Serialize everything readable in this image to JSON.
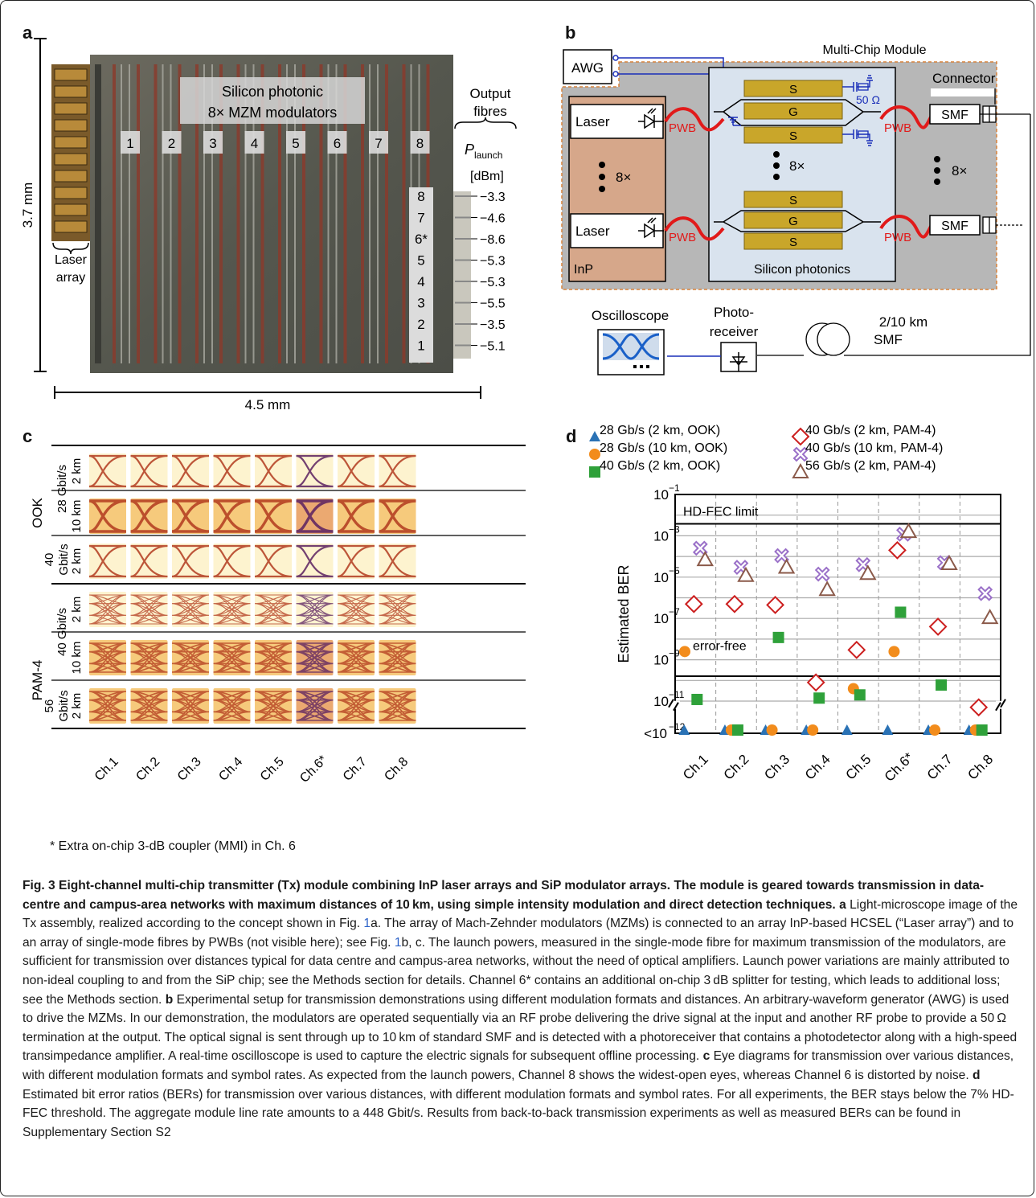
{
  "panel_a": {
    "label": "a",
    "title_line1": "Silicon photonic",
    "title_line2": "8× MZM modulators",
    "modulator_numbers": [
      "1",
      "2",
      "3",
      "4",
      "5",
      "6",
      "7",
      "8"
    ],
    "height_label": "3.7 mm",
    "width_label": "4.5 mm",
    "laser_label_1": "Laser",
    "laser_label_2": "array",
    "output_label_1": "Output",
    "output_label_2": "fibres",
    "plaunch": "P",
    "plaunch_sub": "launch",
    "unit": "[dBm]",
    "channels": [
      {
        "ch": "8",
        "power": "−3.3"
      },
      {
        "ch": "7",
        "power": "−4.6"
      },
      {
        "ch": "6*",
        "power": "−8.6"
      },
      {
        "ch": "5",
        "power": "−5.3"
      },
      {
        "ch": "4",
        "power": "−5.3"
      },
      {
        "ch": "3",
        "power": "−5.5"
      },
      {
        "ch": "2",
        "power": "−3.5"
      },
      {
        "ch": "1",
        "power": "−5.1"
      }
    ]
  },
  "panel_b": {
    "label": "b",
    "mcm": "Multi-Chip Module",
    "awg": "AWG",
    "connector": "Connector",
    "laser": "Laser",
    "pwb": "PWB",
    "s": "S",
    "g": "G",
    "ohm": "50 Ω",
    "smf": "SMF",
    "times8": "8×",
    "inp": "InP",
    "sip": "Silicon photonics",
    "oscilloscope": "Oscilloscope",
    "photoreceiver_1": "Photo-",
    "photoreceiver_2": "receiver",
    "fiber_1": "2/10 km",
    "fiber_2": "SMF"
  },
  "panel_c": {
    "label": "c",
    "rows": [
      {
        "dist": "2 km"
      },
      {
        "dist": "10 km"
      },
      {
        "dist": "2 km"
      },
      {
        "dist": "2 km"
      },
      {
        "dist": "10 km"
      },
      {
        "dist": "2 km"
      }
    ],
    "rate_28": "28 Gbit/s",
    "rate_40a": "40",
    "rate_40b": "Gbit/s",
    "rate_40p": "40 Gbit/s",
    "rate_56a": "56",
    "rate_56b": "Gbit/s",
    "ook": "OOK",
    "pam4": "PAM-4",
    "channels": [
      "Ch.1",
      "Ch.2",
      "Ch.3",
      "Ch.4",
      "Ch.5",
      "Ch.6*",
      "Ch.7",
      "Ch.8"
    ]
  },
  "footnote": "* Extra on-chip 3-dB coupler (MMI) in Ch. 6",
  "chart_data": {
    "type": "scatter",
    "ylabel": "Estimated BER",
    "yscale": "log",
    "ylim": [
      1e-12,
      0.1
    ],
    "yticks": [
      "10^-1",
      "10^-3",
      "10^-5",
      "10^-7",
      "10^-9",
      "10^-11",
      "<10^-12"
    ],
    "categories": [
      "Ch.1",
      "Ch.2",
      "Ch.3",
      "Ch.4",
      "Ch.5",
      "Ch.6*",
      "Ch.7",
      "Ch.8"
    ],
    "grid": true,
    "legend_position": "top",
    "annotations": [
      "HD-FEC  limit",
      "error-free"
    ],
    "hd_fec_limit": 0.0038,
    "error_free_level": 1e-12,
    "series": [
      {
        "name": "28 Gb/s (2 km,   OOK)",
        "marker": "triangle-filled",
        "color": "#2a72b5",
        "values": [
          1e-12,
          1e-12,
          1e-12,
          1e-12,
          1e-12,
          1e-12,
          1e-12,
          1e-12
        ]
      },
      {
        "name": "28 Gb/s (10 km, OOK)",
        "marker": "circle-filled",
        "color": "#f28c1c",
        "values": [
          3e-09,
          1e-12,
          1e-12,
          1e-12,
          4e-11,
          2.5e-09,
          1e-12,
          1e-12
        ]
      },
      {
        "name": "40 Gb/s (2 km,   OOK)",
        "marker": "square-filled",
        "color": "#2fa13a",
        "values": [
          1.2e-11,
          1e-12,
          1.2e-08,
          1.4e-11,
          2e-11,
          2e-07,
          6e-11,
          1e-12
        ]
      },
      {
        "name": "40 Gb/s (2 km,   PAM-4)",
        "marker": "diamond-open",
        "color": "#cc1f1f",
        "values": [
          5e-07,
          5e-07,
          4.5e-07,
          8e-11,
          3e-09,
          0.0002,
          4e-08,
          5e-12
        ]
      },
      {
        "name": "40 Gb/s (10 km, PAM-4)",
        "marker": "x-open",
        "color": "#9a70c8",
        "values": [
          0.00025,
          3e-05,
          0.00011,
          1.4e-05,
          4e-05,
          0.0012,
          5e-05,
          1.6e-06
        ]
      },
      {
        "name": "56 Gb/s (2 km,   PAM-4)",
        "marker": "triangle-open",
        "color": "#8b5a4a",
        "values": [
          7e-05,
          1.2e-05,
          3e-05,
          2.5e-06,
          1.5e-05,
          0.0016,
          4.5e-05,
          1.1e-07
        ]
      }
    ]
  },
  "caption": {
    "title": "Fig. 3 Eight-channel multi-chip transmitter (Tx) module combining InP laser arrays and SiP modulator arrays. The module is geared towards transmission in data-centre and campus-area networks with maximum distances of 10 km, using simple intensity modulation and direct detection techniques.",
    "a_label": "a",
    "a1": " Light-microscope image of the Tx assembly, realized according to the concept shown in Fig. ",
    "ref1": "1",
    "a2": "a. The array of Mach-Zehnder modulators (MZMs) is connected to an array InP-based HCSEL (“Laser array”) and to an array of single-mode fibres by PWBs (not visible here); see Fig. ",
    "ref2": "1",
    "a3": "b, c. The launch powers, measured in the single-mode fibre for maximum transmission of the modulators, are sufficient for transmission over distances typical for data centre and campus-area networks, without the need of optical amplifiers. Launch power variations are mainly attributed to non-ideal coupling to and from the SiP chip; see the Methods section for details. Channel 6* contains an additional on-chip 3 dB splitter for testing, which leads to additional loss; see the Methods section. ",
    "b_label": "b",
    "b": " Experimental setup for transmission demonstrations using different modulation formats and distances. An arbitrary-waveform generator (AWG) is used to drive the MZMs. In our demonstration, the modulators are operated sequentially via an RF probe delivering the drive signal at the input and another RF probe to provide a 50 Ω termination at the output. The optical signal is sent through up to 10 km of standard SMF and is detected with a photoreceiver that contains a photodetector along with a high-speed transimpedance amplifier. A real-time oscilloscope is used to capture the electric signals for subsequent offline processing. ",
    "c_label": "c",
    "c": " Eye diagrams for transmission over various distances, with different modulation formats and symbol rates. As expected from the launch powers, Channel 8 shows the widest-open eyes, whereas Channel 6 is distorted by noise. ",
    "d_label": "d",
    "d": " Estimated bit error ratios (BERs) for transmission over various distances, with different modulation formats and symbol rates. For all experiments, the BER stays below the 7% HD-FEC threshold. The aggregate module line rate amounts to a 448 Gbit/s. Results from back-to-back transmission experiments as well as measured BERs can be found in Supplementary Section S2"
  }
}
